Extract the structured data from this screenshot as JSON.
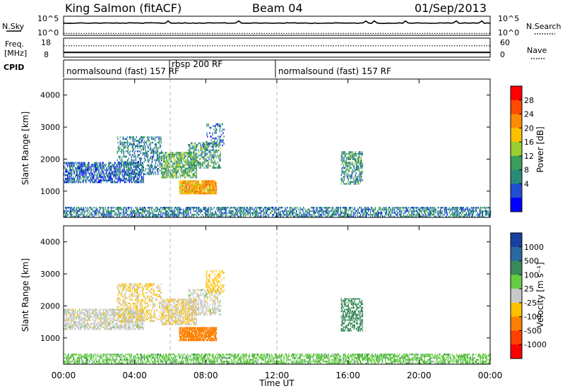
{
  "header": {
    "station": "King Salmon (fitACF)",
    "beam": "Beam 04",
    "date": "01/Sep/2013"
  },
  "strips": {
    "nsky_label": "N.Sky",
    "nsearch_label": "N.Search",
    "freq_label_1": "Freq.",
    "freq_label_2": "[MHz]",
    "nave_label": "Nave",
    "cpid_label": "CPID",
    "nsky_ticks": [
      "10^5",
      "10^0"
    ],
    "nsearch_ticks": [
      "10^5",
      "10^0"
    ],
    "freq_ticks": [
      "18",
      "8"
    ],
    "nave_ticks": [
      "60",
      "0"
    ]
  },
  "cpid": {
    "segments": [
      {
        "text": "normalsound (fast) 157 RF"
      },
      {
        "text": "rbsp 200 RF"
      },
      {
        "text": "normalsound (fast) 157 RF"
      }
    ]
  },
  "axes": {
    "ylabel": "Slant Range [km]",
    "xlabel": "Time UT",
    "x_ticks": [
      "00:00",
      "04:00",
      "08:00",
      "12:00",
      "16:00",
      "20:00",
      "00:00"
    ],
    "y_ticks": [
      "1000",
      "2000",
      "3000",
      "4000"
    ]
  },
  "colorbars": {
    "power": {
      "label": "Power [dB]",
      "ticks": [
        "28",
        "24",
        "20",
        "16",
        "12",
        "8",
        "4"
      ],
      "colors": [
        "#ff0000",
        "#ff4a00",
        "#ff8c00",
        "#ffc000",
        "#9acd32",
        "#3a9e5a",
        "#2a8a7a",
        "#1f4fd0",
        "#0000ff"
      ]
    },
    "velocity": {
      "label": "Velocity [m s⁻¹]",
      "ticks": [
        "1000",
        "500",
        "100",
        "25",
        "-25",
        "-100",
        "-500",
        "-1000"
      ],
      "colors": [
        "#1a3fa0",
        "#2a6aa0",
        "#3a8a5a",
        "#66cc44",
        "#c8c8c8",
        "#ffc000",
        "#ff8000",
        "#ff4000",
        "#ff0000"
      ]
    }
  },
  "chart_data": [
    {
      "type": "line",
      "title": "N.Sky / N.Search",
      "x_range_hours": [
        0,
        24
      ],
      "ylim_log10": [
        0,
        5
      ],
      "series": [
        {
          "name": "N.Sky",
          "style": "solid",
          "value_log10": 3.2
        },
        {
          "name": "N.Search",
          "style": "dotted",
          "value_log10": 0.5
        }
      ]
    },
    {
      "type": "line",
      "title": "Freq / Nave",
      "x_range_hours": [
        0,
        24
      ],
      "series": [
        {
          "name": "Freq. [MHz]",
          "style": "solid",
          "ylim": [
            8,
            18
          ],
          "value": 10.5
        },
        {
          "name": "Nave",
          "style": "dotted",
          "ylim": [
            0,
            60
          ],
          "value": 36
        }
      ]
    },
    {
      "type": "heatmap",
      "title": "Power [dB]",
      "xlabel": "Time UT",
      "ylabel": "Slant Range [km]",
      "x_range_hours": [
        0,
        24
      ],
      "ylim": [
        180,
        4500
      ],
      "clim": [
        0,
        30
      ],
      "grid": false,
      "regions": [
        {
          "t": [
            0.0,
            4.5
          ],
          "r": [
            1250,
            1900
          ],
          "dB": 6,
          "density": 0.55
        },
        {
          "t": [
            3.0,
            5.5
          ],
          "r": [
            1500,
            2700
          ],
          "dB": 8,
          "density": 0.35
        },
        {
          "t": [
            5.5,
            7.5
          ],
          "r": [
            1400,
            2200
          ],
          "dB": 12,
          "density": 0.6
        },
        {
          "t": [
            7.0,
            8.8
          ],
          "r": [
            1700,
            2500
          ],
          "dB": 10,
          "density": 0.45
        },
        {
          "t": [
            6.5,
            8.6
          ],
          "r": [
            900,
            1300
          ],
          "dB": 20,
          "density": 0.85
        },
        {
          "t": [
            8.0,
            9.0
          ],
          "r": [
            2400,
            3100
          ],
          "dB": 6,
          "density": 0.3
        },
        {
          "t": [
            15.6,
            16.8
          ],
          "r": [
            1200,
            2200
          ],
          "dB": 10,
          "density": 0.5
        },
        {
          "t": [
            0.0,
            24.0
          ],
          "r": [
            180,
            500
          ],
          "dB": 8,
          "density": 0.5
        }
      ]
    },
    {
      "type": "heatmap",
      "title": "Velocity [m s-1]",
      "xlabel": "Time UT",
      "ylabel": "Slant Range [km]",
      "x_range_hours": [
        0,
        24
      ],
      "ylim": [
        180,
        4500
      ],
      "clim": [
        -1000,
        1000
      ],
      "grid": false,
      "regions": [
        {
          "t": [
            0.0,
            4.5
          ],
          "r": [
            1250,
            1900
          ],
          "v": 0,
          "density": 0.55
        },
        {
          "t": [
            3.0,
            5.5
          ],
          "r": [
            1500,
            2700
          ],
          "v": -30,
          "density": 0.35
        },
        {
          "t": [
            5.5,
            7.5
          ],
          "r": [
            1400,
            2200
          ],
          "v": -20,
          "density": 0.6
        },
        {
          "t": [
            7.0,
            8.8
          ],
          "r": [
            1700,
            2500
          ],
          "v": 0,
          "density": 0.45
        },
        {
          "t": [
            6.5,
            8.6
          ],
          "r": [
            900,
            1300
          ],
          "v": -300,
          "density": 0.85
        },
        {
          "t": [
            8.0,
            9.0
          ],
          "r": [
            2400,
            3100
          ],
          "v": -60,
          "density": 0.3
        },
        {
          "t": [
            15.6,
            16.8
          ],
          "r": [
            1200,
            2200
          ],
          "v": 300,
          "density": 0.5
        },
        {
          "t": [
            0.0,
            24.0
          ],
          "r": [
            180,
            500
          ],
          "v": 80,
          "density": 0.5
        }
      ]
    }
  ]
}
